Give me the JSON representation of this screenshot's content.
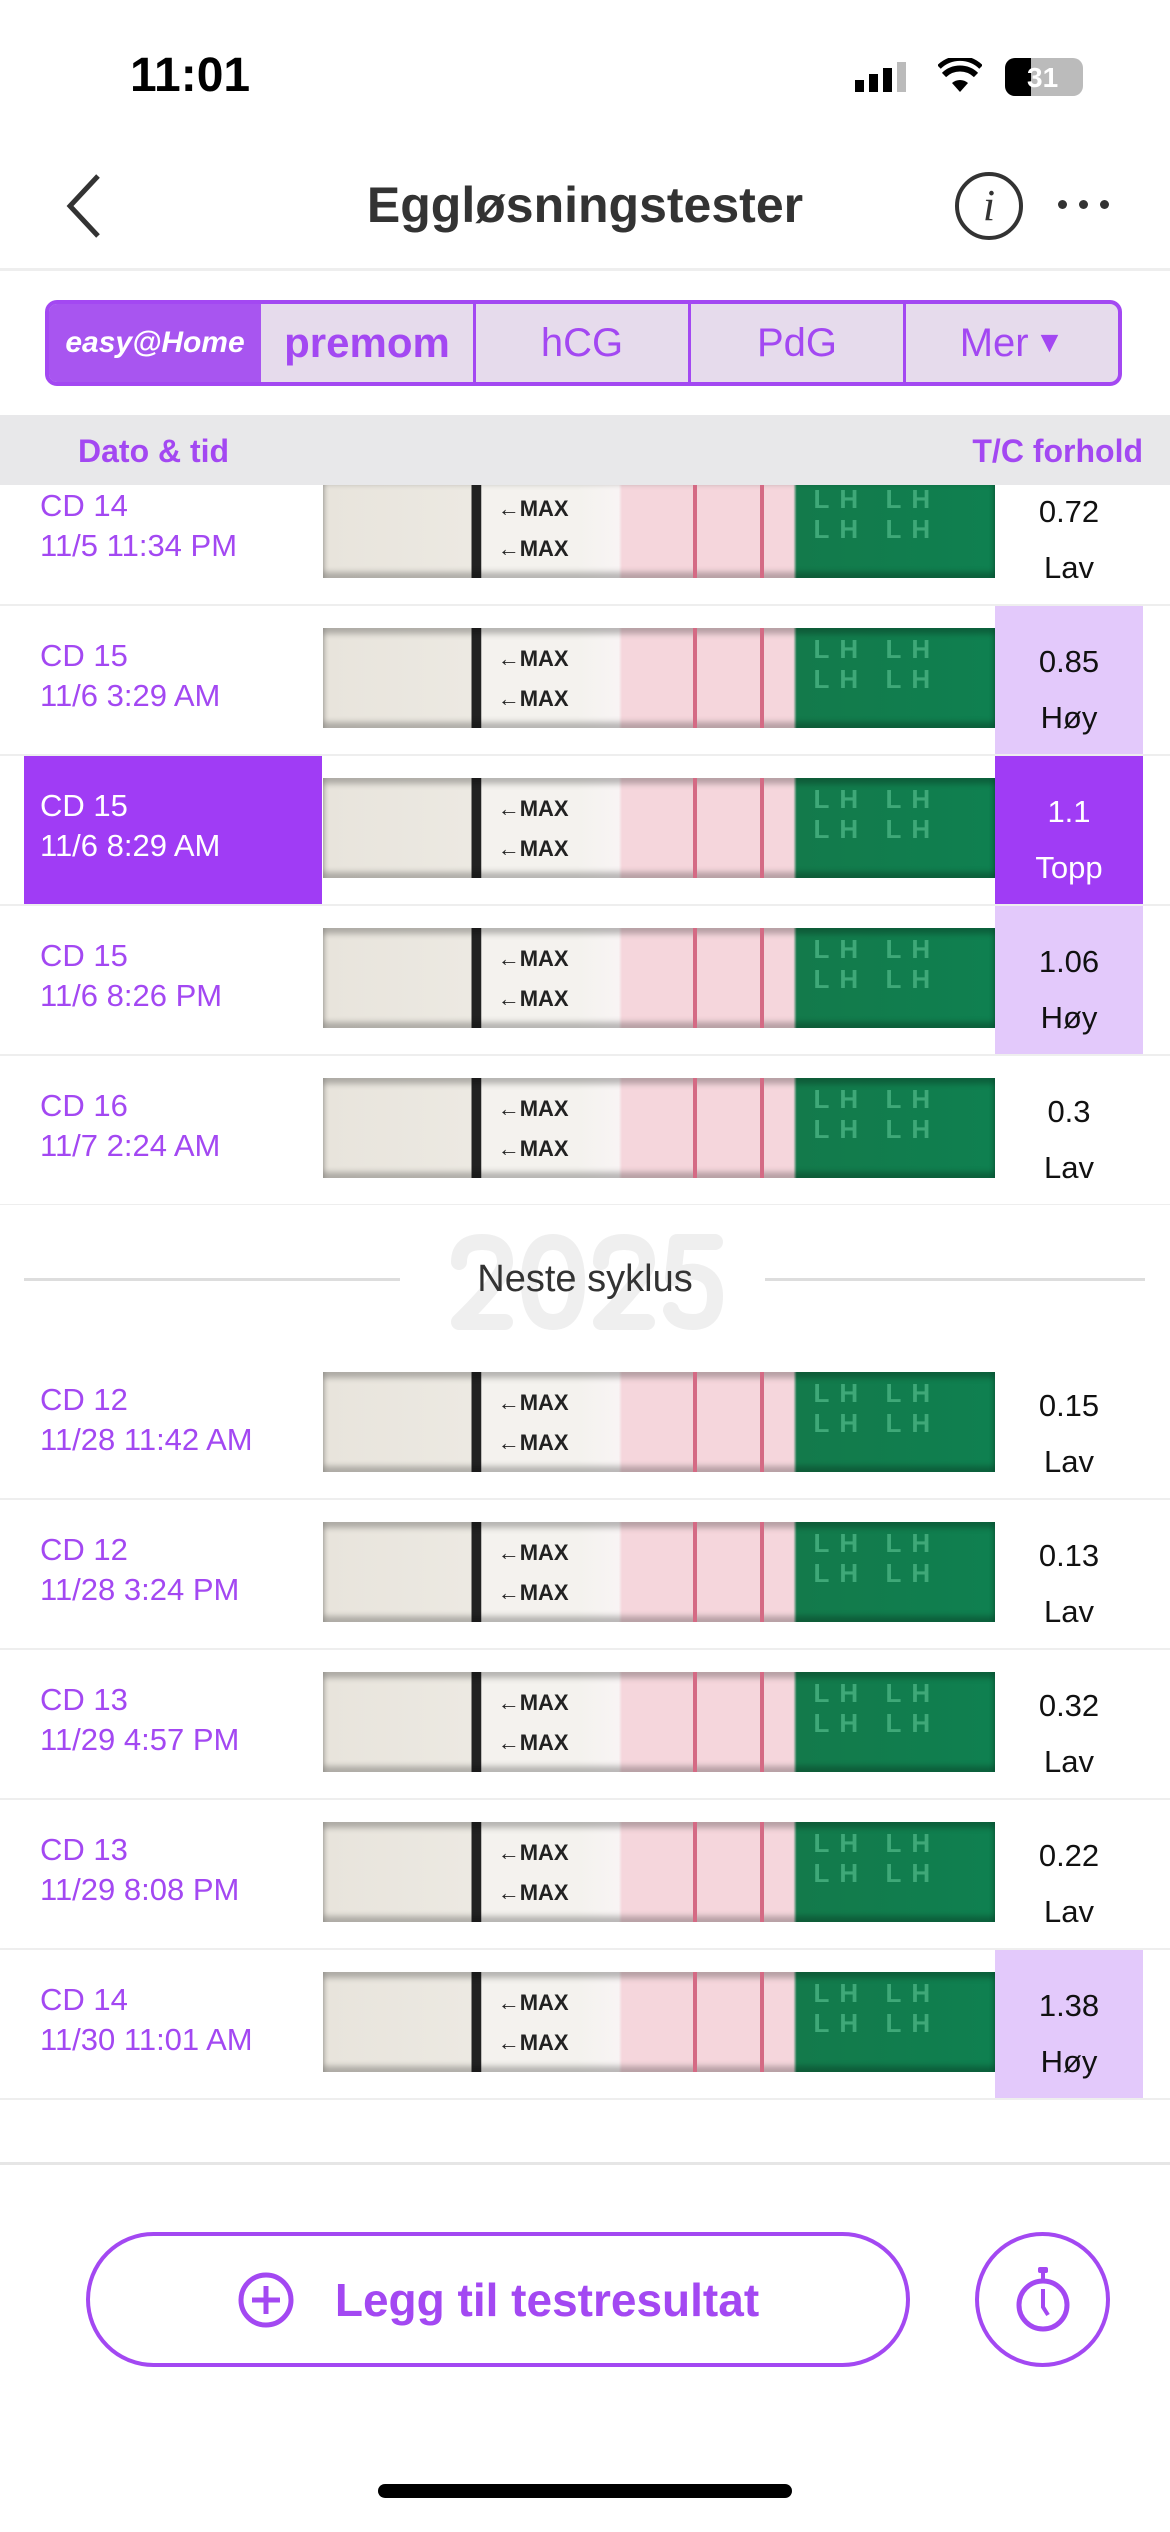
{
  "status": {
    "time": "11:01",
    "battery": "31"
  },
  "nav": {
    "title": "Eggløsningstester"
  },
  "tabs": {
    "brand1": "easy@Home",
    "brand2": "premom",
    "hcg": "hCG",
    "pdg": "PdG",
    "more": "Mer"
  },
  "header": {
    "date_col": "Dato & tid",
    "ratio_col": "T/C forhold"
  },
  "cycle1": [
    {
      "cd": "CD 14",
      "date": "11/5 11:34 PM",
      "value": "0.72",
      "level": "Lav",
      "state": "normal"
    },
    {
      "cd": "CD 15",
      "date": "11/6 3:29 AM",
      "value": "0.85",
      "level": "Høy",
      "state": "hi"
    },
    {
      "cd": "CD 15",
      "date": "11/6 8:29 AM",
      "value": "1.1",
      "level": "Topp",
      "state": "sel"
    },
    {
      "cd": "CD 15",
      "date": "11/6 8:26 PM",
      "value": "1.06",
      "level": "Høy",
      "state": "hi"
    },
    {
      "cd": "CD 16",
      "date": "11/7 2:24 AM",
      "value": "0.3",
      "level": "Lav",
      "state": "normal"
    }
  ],
  "separator": {
    "label": "Neste syklus",
    "watermark": "2025"
  },
  "cycle2": [
    {
      "cd": "CD 12",
      "date": "11/28 11:42 AM",
      "value": "0.15",
      "level": "Lav",
      "state": "normal"
    },
    {
      "cd": "CD 12",
      "date": "11/28 3:24 PM",
      "value": "0.13",
      "level": "Lav",
      "state": "normal"
    },
    {
      "cd": "CD 13",
      "date": "11/29 4:57 PM",
      "value": "0.32",
      "level": "Lav",
      "state": "normal"
    },
    {
      "cd": "CD 13",
      "date": "11/29 8:08 PM",
      "value": "0.22",
      "level": "Lav",
      "state": "normal"
    },
    {
      "cd": "CD 14",
      "date": "11/30 11:01 AM",
      "value": "1.38",
      "level": "Høy",
      "state": "hi"
    }
  ],
  "strip": {
    "max": "←MAX",
    "lh": "LH"
  },
  "actions": {
    "add_label": "Legg til testresultat"
  }
}
